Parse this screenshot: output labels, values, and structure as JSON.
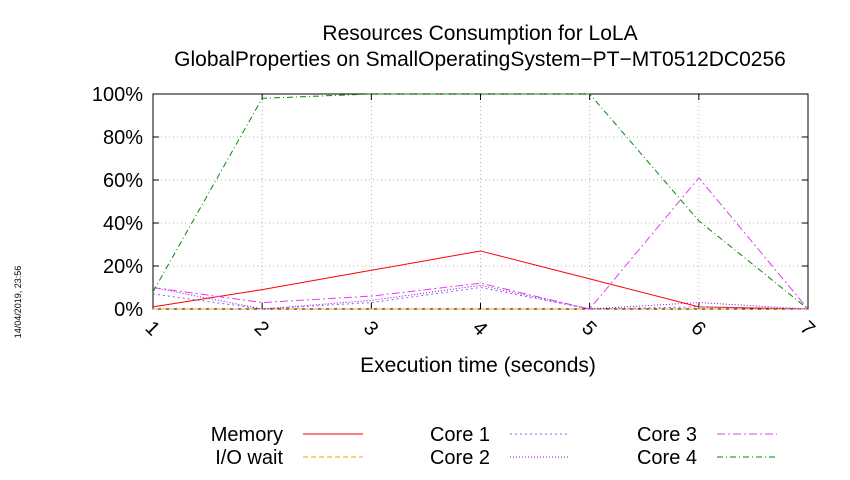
{
  "stamp": "14/04/2019, 23:56",
  "chart_data": {
    "type": "line",
    "title": [
      "Resources Consumption for LoLA",
      "GlobalProperties on SmallOperatingSystem−PT−MT0512DC0256"
    ],
    "xlabel": "Execution time (seconds)",
    "ylabel": "",
    "x": [
      1,
      2,
      3,
      4,
      5,
      6,
      7
    ],
    "xticks": [
      "1",
      "2",
      "3",
      "4",
      "5",
      "6",
      "7"
    ],
    "yticks": [
      "0%",
      "20%",
      "40%",
      "60%",
      "80%",
      "100%"
    ],
    "xlim": [
      1,
      7
    ],
    "ylim": [
      0,
      100
    ],
    "grid": true,
    "legend_position": "bottom",
    "series": [
      {
        "name": "Memory",
        "color": "#ff0000",
        "dash": "",
        "values": [
          1,
          9,
          18,
          27,
          14,
          1,
          0
        ]
      },
      {
        "name": "I/O wait",
        "color": "#ffa000",
        "dash": "5,3",
        "values": [
          0,
          0,
          0,
          0,
          0,
          0,
          0
        ]
      },
      {
        "name": "Core 1",
        "color": "#7a6cf0",
        "dash": "2,3",
        "values": [
          7,
          0,
          3,
          10,
          0,
          1,
          0
        ]
      },
      {
        "name": "Core 2",
        "color": "#9400d3",
        "dash": "1,2",
        "values": [
          10,
          0,
          4,
          11,
          0,
          3,
          0
        ]
      },
      {
        "name": "Core 3",
        "color": "#e040f0",
        "dash": "8,3,2,3",
        "values": [
          10,
          3,
          6,
          12,
          0,
          61,
          0
        ]
      },
      {
        "name": "Core 4",
        "color": "#008b00",
        "dash": "6,3,1,3",
        "values": [
          8,
          98,
          100,
          100,
          100,
          41,
          0
        ]
      }
    ]
  }
}
